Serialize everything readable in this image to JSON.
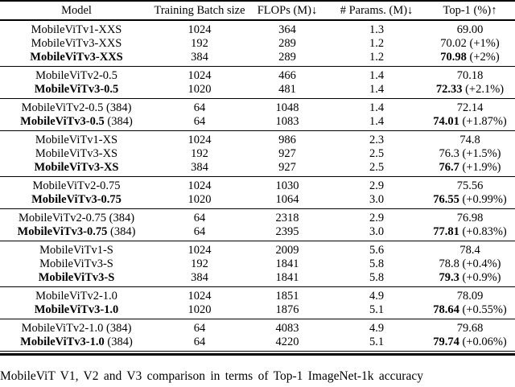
{
  "table": {
    "columns": [
      "Model",
      "Training Batch size",
      "FLOPs (M)↓",
      "# Params. (M)↓",
      "Top-1 (%)↑"
    ],
    "groups": [
      {
        "rows": [
          {
            "model": "MobileViTv1-XXS",
            "suffix": "",
            "batch": "1024",
            "flops": "364",
            "params": "1.3",
            "top1": "69.00",
            "delta": "",
            "best": false
          },
          {
            "model": "MobileViTv3-XXS",
            "suffix": "",
            "batch": "192",
            "flops": "289",
            "params": "1.2",
            "top1": "70.02",
            "delta": " (+1%)",
            "best": false
          },
          {
            "model": "MobileViTv3-XXS",
            "suffix": "",
            "batch": "384",
            "flops": "289",
            "params": "1.2",
            "top1": "70.98",
            "delta": " (+2%)",
            "best": true
          }
        ]
      },
      {
        "rows": [
          {
            "model": "MobileViTv2-0.5",
            "suffix": "",
            "batch": "1024",
            "flops": "466",
            "params": "1.4",
            "top1": "70.18",
            "delta": "",
            "best": false
          },
          {
            "model": "MobileViTv3-0.5",
            "suffix": "",
            "batch": "1020",
            "flops": "481",
            "params": "1.4",
            "top1": "72.33",
            "delta": " (+2.1%)",
            "best": true
          }
        ]
      },
      {
        "rows": [
          {
            "model": "MobileViTv2-0.5",
            "suffix": " (384)",
            "batch": "64",
            "flops": "1048",
            "params": "1.4",
            "top1": "72.14",
            "delta": "",
            "best": false
          },
          {
            "model": "MobileViTv3-0.5",
            "suffix": " (384)",
            "batch": "64",
            "flops": "1083",
            "params": "1.4",
            "top1": "74.01",
            "delta": " (+1.87%)",
            "best": true
          }
        ]
      },
      {
        "rows": [
          {
            "model": "MobileViTv1-XS",
            "suffix": "",
            "batch": "1024",
            "flops": "986",
            "params": "2.3",
            "top1": "74.8",
            "delta": "",
            "best": false
          },
          {
            "model": "MobileViTv3-XS",
            "suffix": "",
            "batch": "192",
            "flops": "927",
            "params": "2.5",
            "top1": "76.3",
            "delta": " (+1.5%)",
            "best": false
          },
          {
            "model": "MobileViTv3-XS",
            "suffix": "",
            "batch": "384",
            "flops": "927",
            "params": "2.5",
            "top1": "76.7",
            "delta": " (+1.9%)",
            "best": true
          }
        ]
      },
      {
        "rows": [
          {
            "model": "MobileViTv2-0.75",
            "suffix": "",
            "batch": "1024",
            "flops": "1030",
            "params": "2.9",
            "top1": "75.56",
            "delta": "",
            "best": false
          },
          {
            "model": "MobileViTv3-0.75",
            "suffix": "",
            "batch": "1020",
            "flops": "1064",
            "params": "3.0",
            "top1": "76.55",
            "delta": " (+0.99%)",
            "best": true
          }
        ]
      },
      {
        "rows": [
          {
            "model": "MobileViTv2-0.75",
            "suffix": " (384)",
            "batch": "64",
            "flops": "2318",
            "params": "2.9",
            "top1": "76.98",
            "delta": "",
            "best": false
          },
          {
            "model": "MobileViTv3-0.75",
            "suffix": " (384)",
            "batch": "64",
            "flops": "2395",
            "params": "3.0",
            "top1": "77.81",
            "delta": " (+0.83%)",
            "best": true
          }
        ]
      },
      {
        "rows": [
          {
            "model": "MobileViTv1-S",
            "suffix": "",
            "batch": "1024",
            "flops": "2009",
            "params": "5.6",
            "top1": "78.4",
            "delta": "",
            "best": false
          },
          {
            "model": "MobileViTv3-S",
            "suffix": "",
            "batch": "192",
            "flops": "1841",
            "params": "5.8",
            "top1": "78.8",
            "delta": " (+0.4%)",
            "best": false
          },
          {
            "model": "MobileViTv3-S",
            "suffix": "",
            "batch": "384",
            "flops": "1841",
            "params": "5.8",
            "top1": "79.3",
            "delta": " (+0.9%)",
            "best": true
          }
        ]
      },
      {
        "rows": [
          {
            "model": "MobileViTv2-1.0",
            "suffix": "",
            "batch": "1024",
            "flops": "1851",
            "params": "4.9",
            "top1": "78.09",
            "delta": "",
            "best": false
          },
          {
            "model": "MobileViTv3-1.0",
            "suffix": "",
            "batch": "1020",
            "flops": "1876",
            "params": "5.1",
            "top1": "78.64",
            "delta": " (+0.55%)",
            "best": true
          }
        ]
      },
      {
        "rows": [
          {
            "model": "MobileViTv2-1.0",
            "suffix": " (384)",
            "batch": "64",
            "flops": "4083",
            "params": "4.9",
            "top1": "79.68",
            "delta": "",
            "best": false
          },
          {
            "model": "MobileViTv3-1.0",
            "suffix": " (384)",
            "batch": "64",
            "flops": "4220",
            "params": "5.1",
            "top1": "79.74",
            "delta": " (+0.06%)",
            "best": true
          }
        ]
      }
    ]
  },
  "caption": "MobileViT V1, V2 and V3 comparison in terms of Top-1 ImageNet-1k accuracy",
  "colors": {
    "text": "#000000",
    "background": "#ffffff",
    "rule": "#000000"
  }
}
